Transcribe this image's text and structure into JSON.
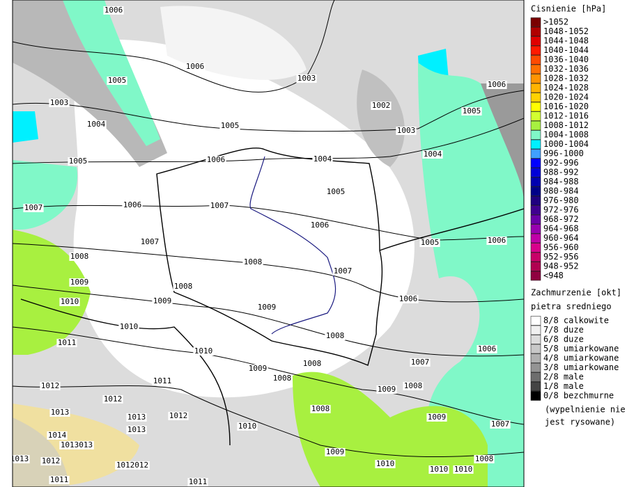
{
  "isobar_labels": [
    "1006",
    "1006",
    "1005",
    "1003",
    "1002",
    "1003",
    "1004",
    "1005",
    "1003",
    "1006",
    "1005",
    "1005",
    "1006",
    "1004",
    "1004",
    "1005",
    "1007",
    "1006",
    "1007",
    "1006",
    "1005",
    "1006",
    "1007",
    "1008",
    "1008",
    "1007",
    "1009",
    "1008",
    "1010",
    "1009",
    "1009",
    "1006",
    "1010",
    "1011",
    "1008",
    "1006",
    "1010",
    "1007",
    "1008",
    "1009",
    "1008",
    "1011",
    "1012",
    "1009",
    "1008",
    "1012",
    "1013",
    "1008",
    "1013",
    "1012",
    "1009",
    "1007",
    "1010",
    "1013",
    "1014",
    "1013013",
    "1013",
    "1012",
    "1009",
    "1008",
    "1012012",
    "1010",
    "1010",
    "1010",
    "1011",
    "1011"
  ],
  "pressure_legend": {
    "title": "Cisnienie [hPa]",
    "items": [
      {
        "label": ">1052",
        "color": "#7a0000"
      },
      {
        "label": "1048-1052",
        "color": "#b00000"
      },
      {
        "label": "1044-1048",
        "color": "#e00000"
      },
      {
        "label": "1040-1044",
        "color": "#ff1a00"
      },
      {
        "label": "1036-1040",
        "color": "#ff4a00"
      },
      {
        "label": "1032-1036",
        "color": "#ff7000"
      },
      {
        "label": "1028-1032",
        "color": "#ff9400"
      },
      {
        "label": "1024-1028",
        "color": "#ffb400"
      },
      {
        "label": "1020-1024",
        "color": "#ffd200"
      },
      {
        "label": "1016-1020",
        "color": "#ffff00"
      },
      {
        "label": "1012-1016",
        "color": "#d2ff30"
      },
      {
        "label": "1008-1012",
        "color": "#a8f040"
      },
      {
        "label": "1004-1008",
        "color": "#80f8c8"
      },
      {
        "label": "1000-1004",
        "color": "#00f0ff"
      },
      {
        "label": "996-1000",
        "color": "#40a0ff"
      },
      {
        "label": "992-996",
        "color": "#0000ff"
      },
      {
        "label": "988-992",
        "color": "#0000d8"
      },
      {
        "label": "984-988",
        "color": "#0000b0"
      },
      {
        "label": "980-984",
        "color": "#000088"
      },
      {
        "label": "976-980",
        "color": "#200080"
      },
      {
        "label": "972-976",
        "color": "#400090"
      },
      {
        "label": "968-972",
        "color": "#6a00a8"
      },
      {
        "label": "964-968",
        "color": "#9800b0"
      },
      {
        "label": "960-964",
        "color": "#c000a8"
      },
      {
        "label": "956-960",
        "color": "#d8008c"
      },
      {
        "label": "952-956",
        "color": "#c80068"
      },
      {
        "label": "948-952",
        "color": "#b00050"
      },
      {
        "label": "<948",
        "color": "#900040"
      }
    ]
  },
  "cloud_legend": {
    "title": "Zachmurzenie [okt]",
    "subtitle": "pietra sredniego",
    "items": [
      {
        "label": "8/8 calkowite",
        "color": "#ffffff"
      },
      {
        "label": "7/8 duze",
        "color": "#f0f0f0"
      },
      {
        "label": "6/8 duze",
        "color": "#dcdcdc"
      },
      {
        "label": "5/8 umiarkowane",
        "color": "#c8c8c8"
      },
      {
        "label": "4/8 umiarkowane",
        "color": "#b0b0b0"
      },
      {
        "label": "3/8 umiarkowane",
        "color": "#949494"
      },
      {
        "label": "2/8 male",
        "color": "#6e6e6e"
      },
      {
        "label": "1/8 male",
        "color": "#444444"
      },
      {
        "label": "0/8 bezchmurne",
        "color": "#000000"
      }
    ],
    "note": [
      "(wypelnienie nie",
      "jest rysowane)"
    ]
  }
}
